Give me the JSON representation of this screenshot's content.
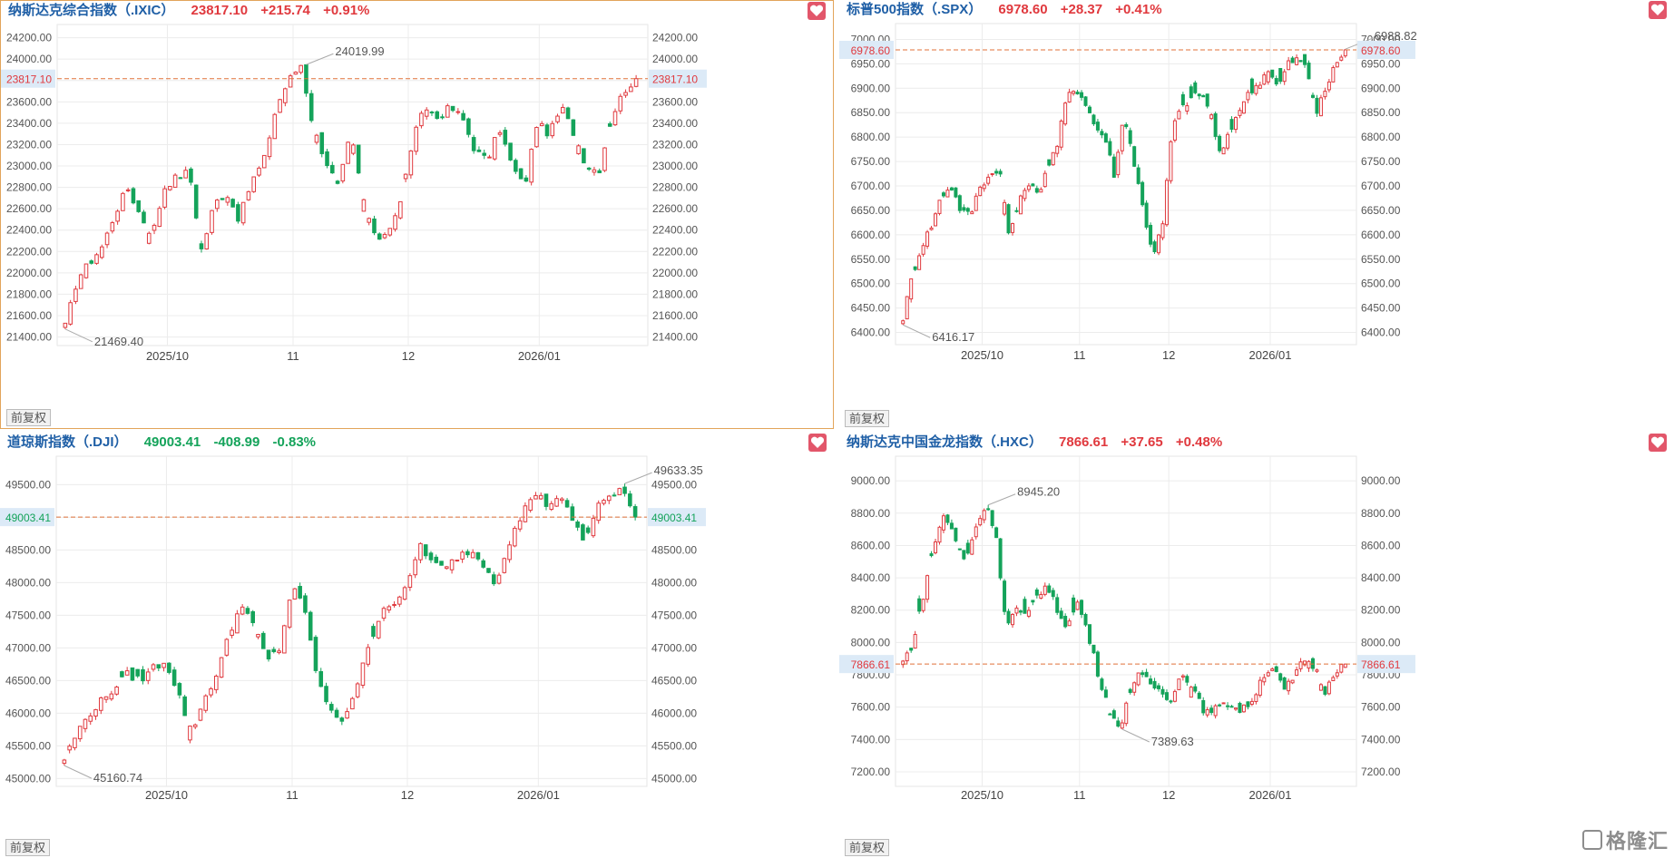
{
  "colors": {
    "up": "#e0393e",
    "down": "#14a35a",
    "grid": "#ececec",
    "name": "#1f5fa6",
    "ref_line": "#e0723a"
  },
  "adjust_label": "前复权",
  "watermark": "格隆汇",
  "panels": [
    {
      "name": "纳斯达克综合指数（.IXIC）",
      "price": "23817.10",
      "change": "+215.74",
      "pct": "+0.91%",
      "direction": "up",
      "current_label": "23817.10",
      "chart_data": {
        "type": "candlestick",
        "ylim": [
          21320,
          24290
        ],
        "yticks": [
          "21400.00",
          "21600.00",
          "21800.00",
          "22000.00",
          "22200.00",
          "22400.00",
          "22600.00",
          "22800.00",
          "23000.00",
          "23200.00",
          "23400.00",
          "23600.00",
          "23800.00",
          "24000.00",
          "24200.00"
        ],
        "xticks": [
          "2025/10",
          "11",
          "12",
          "2026/01"
        ],
        "xtick_index": [
          20,
          44,
          66,
          91
        ],
        "annotations": {
          "high": "24019.99",
          "low": "21469.40"
        },
        "current": 23817.1,
        "anchors": [
          21500,
          21950,
          22100,
          22250,
          22550,
          22800,
          22550,
          22350,
          22800,
          22900,
          22950,
          22200,
          22650,
          22750,
          22500,
          22850,
          23050,
          23550,
          23800,
          23950,
          23350,
          23050,
          22800,
          23300,
          22700,
          22300,
          22400,
          22650,
          23250,
          23550,
          23450,
          23550,
          23450,
          23150,
          23050,
          23350,
          23000,
          22800,
          23400,
          23300,
          23550,
          23300,
          23000,
          22950,
          23450,
          23700,
          23817.1
        ]
      }
    },
    {
      "name": "标普500指数（.SPX）",
      "price": "6978.60",
      "change": "+28.37",
      "pct": "+0.41%",
      "direction": "up",
      "current_label": "6978.60",
      "chart_data": {
        "type": "candlestick",
        "ylim": [
          6375,
          7025
        ],
        "yticks": [
          "6400.00",
          "6450.00",
          "6500.00",
          "6550.00",
          "6600.00",
          "6650.00",
          "6700.00",
          "6750.00",
          "6800.00",
          "6850.00",
          "6900.00",
          "6950.00",
          "7000.00"
        ],
        "xticks": [
          "2025/10",
          "11",
          "12",
          "2026/01"
        ],
        "xtick_index": [
          20,
          44,
          66,
          91
        ],
        "annotations": {
          "high": "6988.82",
          "low": "6416.17"
        },
        "current": 6978.6,
        "anchors": [
          6430,
          6520,
          6580,
          6620,
          6680,
          6700,
          6650,
          6640,
          6700,
          6720,
          6740,
          6600,
          6660,
          6710,
          6680,
          6740,
          6780,
          6880,
          6900,
          6870,
          6820,
          6800,
          6720,
          6850,
          6750,
          6650,
          6560,
          6620,
          6820,
          6860,
          6880,
          6890,
          6850,
          6760,
          6810,
          6860,
          6890,
          6910,
          6940,
          6900,
          6950,
          6960,
          6940,
          6850,
          6900,
          6950,
          6978.6
        ]
      }
    },
    {
      "name": "道琼斯指数（.DJI）",
      "price": "49003.41",
      "change": "-408.99",
      "pct": "-0.83%",
      "direction": "down",
      "current_label": "49003.41",
      "chart_data": {
        "type": "candlestick",
        "ylim": [
          44880,
          49880
        ],
        "yticks": [
          "45000.00",
          "45500.00",
          "46000.00",
          "46500.00",
          "47000.00",
          "47500.00",
          "48000.00",
          "48500.00",
          "49000.00",
          "49500.00"
        ],
        "xticks": [
          "2025/10",
          "11",
          "12",
          "2026/01"
        ],
        "xtick_index": [
          20,
          44,
          66,
          91
        ],
        "annotations": {
          "high": "49633.35",
          "low": "45160.74"
        },
        "current": 49003.41,
        "anchors": [
          45300,
          45700,
          46000,
          46200,
          46400,
          46600,
          46500,
          46700,
          46800,
          46300,
          45700,
          46200,
          46600,
          47200,
          47700,
          47300,
          46800,
          47000,
          48000,
          47500,
          46500,
          46000,
          45900,
          46400,
          47000,
          47600,
          47700,
          47900,
          48600,
          48300,
          48200,
          48400,
          48500,
          48300,
          48000,
          48600,
          49000,
          49400,
          49200,
          49300,
          49000,
          48600,
          49200,
          49300,
          49411.4,
          49003.41
        ]
      }
    },
    {
      "name": "纳斯达克中国金龙指数（.HXC）",
      "price": "7866.61",
      "change": "+37.65",
      "pct": "+0.48%",
      "direction": "up",
      "current_label": "7866.61",
      "chart_data": {
        "type": "candlestick",
        "ylim": [
          7110,
          9130
        ],
        "yticks": [
          "7200.00",
          "7400.00",
          "7600.00",
          "7800.00",
          "8000.00",
          "8200.00",
          "8400.00",
          "8600.00",
          "8800.00",
          "9000.00"
        ],
        "xticks": [
          "2025/10",
          "11",
          "12",
          "2026/01"
        ],
        "xtick_index": [
          20,
          44,
          66,
          91
        ],
        "annotations": {
          "high": "8945.20",
          "low": "7389.63"
        },
        "current": 7866.61,
        "anchors": [
          7880,
          8000,
          8300,
          8600,
          8800,
          8650,
          8500,
          8700,
          8850,
          8700,
          8100,
          8200,
          8150,
          8300,
          8350,
          8200,
          8100,
          8250,
          8050,
          7800,
          7600,
          7450,
          7700,
          7800,
          7750,
          7700,
          7650,
          7800,
          7750,
          7600,
          7550,
          7650,
          7600,
          7580,
          7650,
          7800,
          7850,
          7700,
          7780,
          7900,
          7850,
          7700,
          7830,
          7866.61
        ]
      }
    }
  ]
}
